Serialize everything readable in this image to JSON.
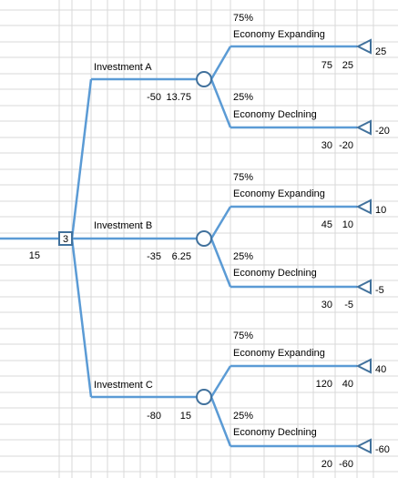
{
  "root": {
    "decision_index": "3",
    "value": "15"
  },
  "branches": [
    {
      "label": "Investment A",
      "cost": "-50",
      "expected_value": "13.75",
      "outcomes": [
        {
          "probability": "75%",
          "label": "Economy Expanding",
          "cashflow": "75",
          "cumulative": "25",
          "terminal": "25"
        },
        {
          "probability": "25%",
          "label": "Economy Declning",
          "cashflow": "30",
          "cumulative": "-20",
          "terminal": "-20"
        }
      ]
    },
    {
      "label": "Investment B",
      "cost": "-35",
      "expected_value": "6.25",
      "outcomes": [
        {
          "probability": "75%",
          "label": "Economy Expanding",
          "cashflow": "45",
          "cumulative": "10",
          "terminal": "10"
        },
        {
          "probability": "25%",
          "label": "Economy Declning",
          "cashflow": "30",
          "cumulative": "-5",
          "terminal": "-5"
        }
      ]
    },
    {
      "label": "Investment C",
      "cost": "-80",
      "expected_value": "15",
      "outcomes": [
        {
          "probability": "75%",
          "label": "Economy Expanding",
          "cashflow": "120",
          "cumulative": "40",
          "terminal": "40"
        },
        {
          "probability": "25%",
          "label": "Economy Declning",
          "cashflow": "20",
          "cumulative": "-60",
          "terminal": "-60"
        }
      ]
    }
  ],
  "colors": {
    "edge": "#5b9bd5",
    "node_stroke": "#41719c",
    "grid": "#d9d9d9"
  }
}
